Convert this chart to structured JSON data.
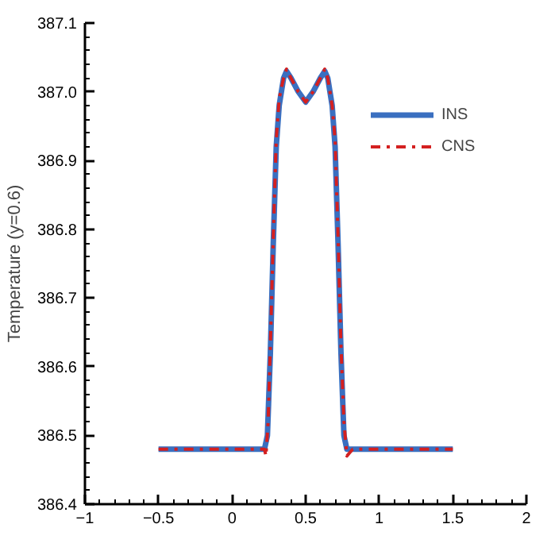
{
  "chart_data": {
    "type": "line",
    "ylabel": "Temperature (y=0.6)",
    "xlim": [
      -1,
      2
    ],
    "xticks": [
      -1,
      -0.5,
      0,
      0.5,
      1,
      1.5,
      2
    ],
    "ylim": [
      386.4,
      387.1
    ],
    "yticks": [
      {
        "value": 386.4,
        "label": "386.4"
      },
      {
        "value": 386.5,
        "label": "386.5"
      },
      {
        "value": 386.6,
        "label": "386.6"
      },
      {
        "value": 386.7,
        "label": "386.7"
      },
      {
        "value": 386.8,
        "label": "386.8"
      },
      {
        "value": 386.9,
        "label": "386.9"
      },
      {
        "value": 387.0,
        "label": "387.0"
      },
      {
        "value": 387.1,
        "label": "387.1"
      }
    ],
    "grid": false,
    "legend": "top right",
    "series": [
      {
        "name": "INS",
        "color": "#3a6fc0",
        "line_style": "solid",
        "x": [
          -0.5,
          0.22,
          0.24,
          0.26,
          0.28,
          0.3,
          0.32,
          0.35,
          0.37,
          0.4,
          0.45,
          0.5,
          0.55,
          0.6,
          0.63,
          0.65,
          0.68,
          0.7,
          0.72,
          0.74,
          0.76,
          0.78,
          0.8,
          1.5
        ],
        "values": [
          386.48,
          386.48,
          386.5,
          386.62,
          386.78,
          386.92,
          386.98,
          387.02,
          387.03,
          387.02,
          387.0,
          386.985,
          387.0,
          387.02,
          387.03,
          387.02,
          386.98,
          386.92,
          386.78,
          386.62,
          386.5,
          386.48,
          386.48,
          386.48
        ]
      },
      {
        "name": "CNS",
        "color": "#d42020",
        "line_style": "dashdot",
        "x": [
          -0.5,
          0.22,
          0.23,
          0.245,
          0.26,
          0.28,
          0.3,
          0.32,
          0.35,
          0.37,
          0.4,
          0.45,
          0.5,
          0.55,
          0.6,
          0.63,
          0.65,
          0.68,
          0.7,
          0.72,
          0.74,
          0.76,
          0.78,
          0.8,
          0.82,
          1.5
        ],
        "values": [
          386.48,
          386.48,
          386.47,
          386.52,
          386.63,
          386.79,
          386.93,
          386.99,
          387.02,
          387.033,
          387.02,
          387.0,
          386.985,
          387.0,
          387.02,
          387.033,
          387.02,
          386.98,
          386.93,
          386.79,
          386.63,
          386.52,
          386.47,
          386.475,
          386.48,
          386.48
        ]
      }
    ]
  }
}
